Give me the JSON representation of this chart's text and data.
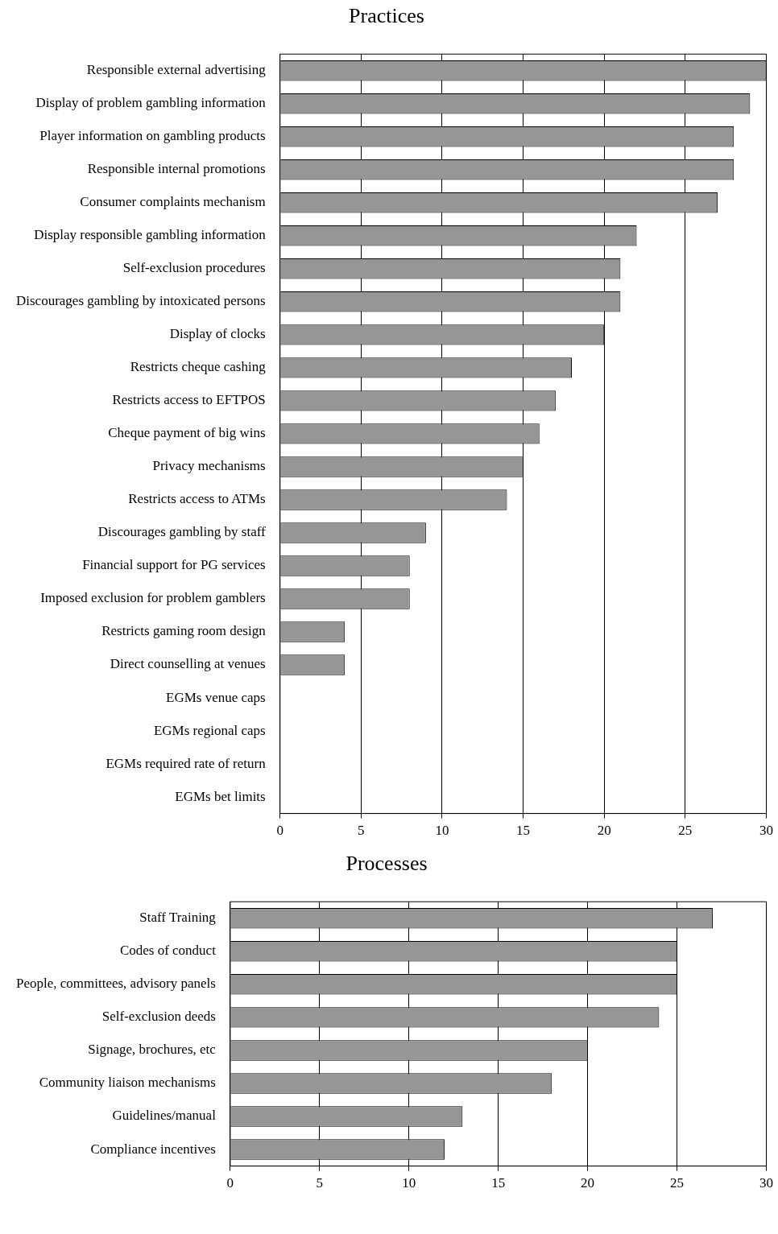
{
  "chart_data": [
    {
      "type": "bar",
      "orientation": "horizontal",
      "title": "Practices",
      "categories": [
        "Responsible external advertising",
        "Display of problem gambling information",
        "Player information on gambling products",
        "Responsible internal promotions",
        "Consumer complaints mechanism",
        "Display responsible gambling information",
        "Self-exclusion procedures",
        "Discourages gambling by intoxicated persons",
        "Display of clocks",
        "Restricts cheque cashing",
        "Restricts access to EFTPOS",
        "Cheque payment of big wins",
        "Privacy mechanisms",
        "Restricts access to ATMs",
        "Discourages gambling by staff",
        "Financial support for PG services",
        "Imposed exclusion for problem gamblers",
        "Restricts gaming room design",
        "Direct counselling at venues",
        "EGMs venue caps",
        "EGMs regional caps",
        "EGMs required rate of return",
        "EGMs bet limits"
      ],
      "values": [
        30,
        29,
        28,
        28,
        27,
        22,
        21,
        21,
        20,
        18,
        17,
        16,
        15,
        14,
        9,
        8,
        8,
        4,
        4,
        0,
        0,
        0,
        0
      ],
      "color": "#969696",
      "xlim": [
        0,
        30
      ],
      "xticks": [
        0,
        5,
        10,
        15,
        20,
        25,
        30
      ],
      "grid": "x"
    },
    {
      "type": "bar",
      "orientation": "horizontal",
      "title": "Processes",
      "categories": [
        "Staff Training",
        "Codes of conduct",
        "People, committees, advisory panels",
        "Self-exclusion deeds",
        "Signage, brochures, etc",
        "Community liaison mechanisms",
        "Guidelines/manual",
        "Compliance incentives"
      ],
      "values": [
        27,
        25,
        25,
        24,
        20,
        18,
        13,
        12
      ],
      "color": "#969696",
      "xlim": [
        0,
        30
      ],
      "xticks": [
        0,
        5,
        10,
        15,
        20,
        25,
        30
      ],
      "grid": "x"
    }
  ]
}
